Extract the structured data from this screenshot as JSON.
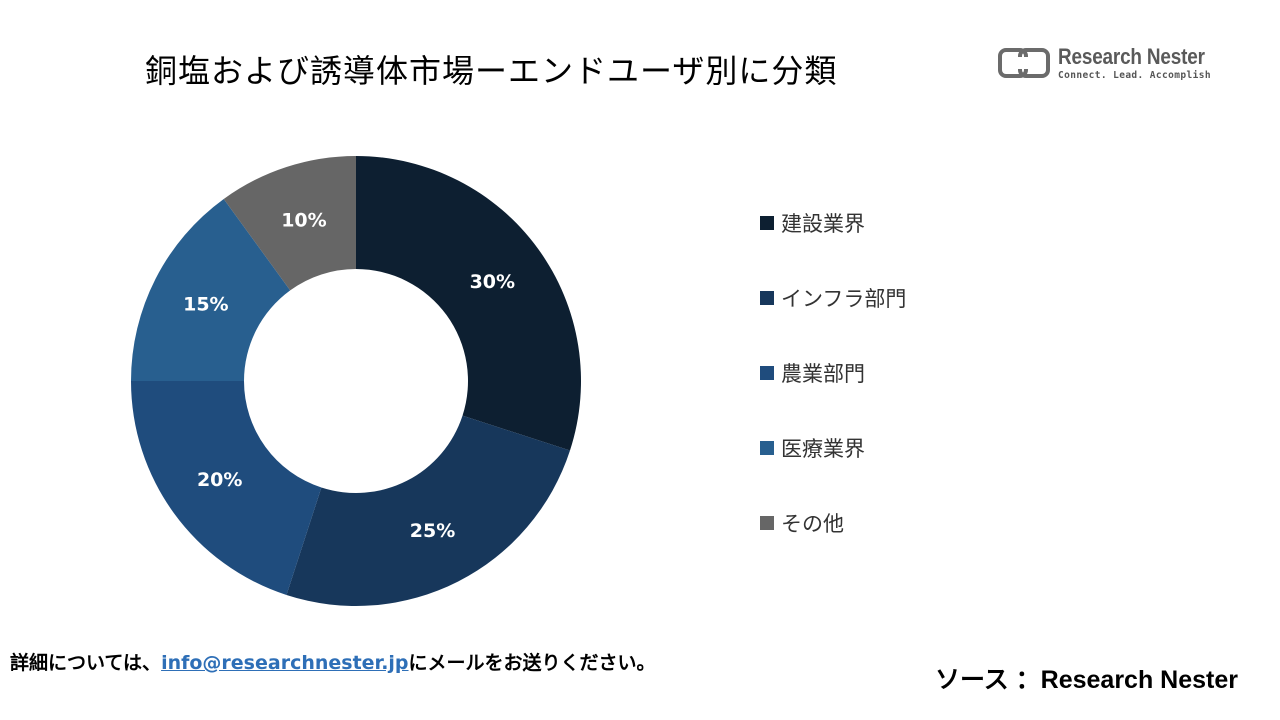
{
  "header": {
    "title": "銅塩および誘導体市場ーエンドユーザ別に分類"
  },
  "logo": {
    "name": "Research Nester",
    "tagline": "Connect. Lead. Accomplish"
  },
  "chart_data": {
    "type": "pie",
    "categories": [
      "建設業界",
      "インフラ部門",
      "農業部門",
      "医療業界",
      "その他"
    ],
    "values": [
      30,
      25,
      20,
      15,
      10
    ],
    "data_labels": [
      "30%",
      "25%",
      "20%",
      "15%",
      "10%"
    ],
    "colors": [
      "#0d1f31",
      "#17375b",
      "#1f4c7d",
      "#285f8f",
      "#666666"
    ],
    "hole": "donut",
    "legend_position": "right"
  },
  "footer": {
    "prefix": "詳細については、",
    "email": "info@researchnester.jp",
    "suffix": "にメールをお送りください。",
    "source": "ソース ：Research Nester"
  }
}
